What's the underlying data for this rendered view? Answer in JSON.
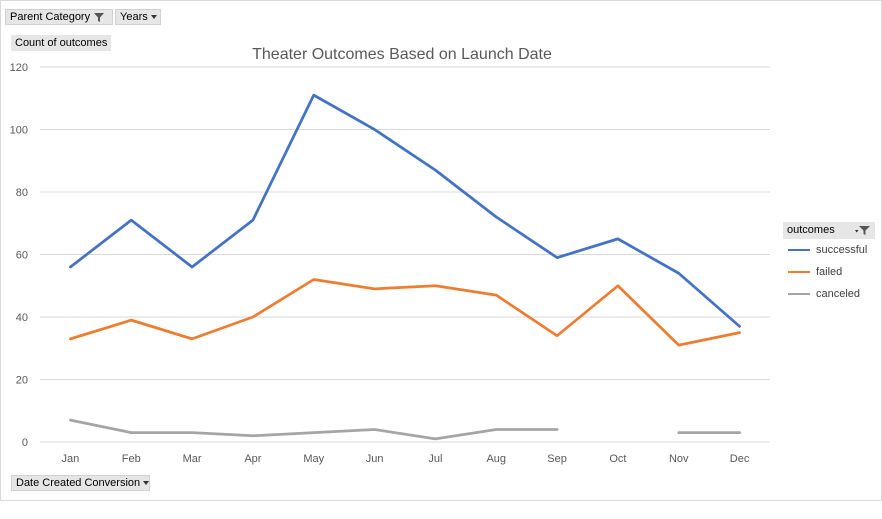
{
  "pivot_filters": {
    "parent_category": "Parent Category",
    "years": "Years",
    "axis_field": "Date Created Conversion",
    "value_field": "Count of outcomes"
  },
  "legend": {
    "title": "outcomes"
  },
  "chart_data": {
    "type": "line",
    "title": "Theater Outcomes Based on Launch Date",
    "xlabel": "",
    "ylabel": "",
    "categories": [
      "Jan",
      "Feb",
      "Mar",
      "Apr",
      "May",
      "Jun",
      "Jul",
      "Aug",
      "Sep",
      "Oct",
      "Nov",
      "Dec"
    ],
    "ylim": [
      0,
      120
    ],
    "yticks": [
      0,
      20,
      40,
      60,
      80,
      100,
      120
    ],
    "grid": true,
    "legend_position": "right",
    "series": [
      {
        "name": "successful",
        "color": "#4472c4",
        "values": [
          56,
          71,
          56,
          71,
          111,
          100,
          87,
          72,
          59,
          65,
          54,
          37
        ]
      },
      {
        "name": "failed",
        "color": "#ed7d31",
        "values": [
          33,
          39,
          33,
          40,
          52,
          49,
          50,
          47,
          34,
          50,
          31,
          35
        ]
      },
      {
        "name": "canceled",
        "color": "#a5a5a5",
        "values": [
          7,
          3,
          3,
          2,
          3,
          4,
          1,
          4,
          4,
          null,
          3,
          3
        ]
      }
    ]
  }
}
